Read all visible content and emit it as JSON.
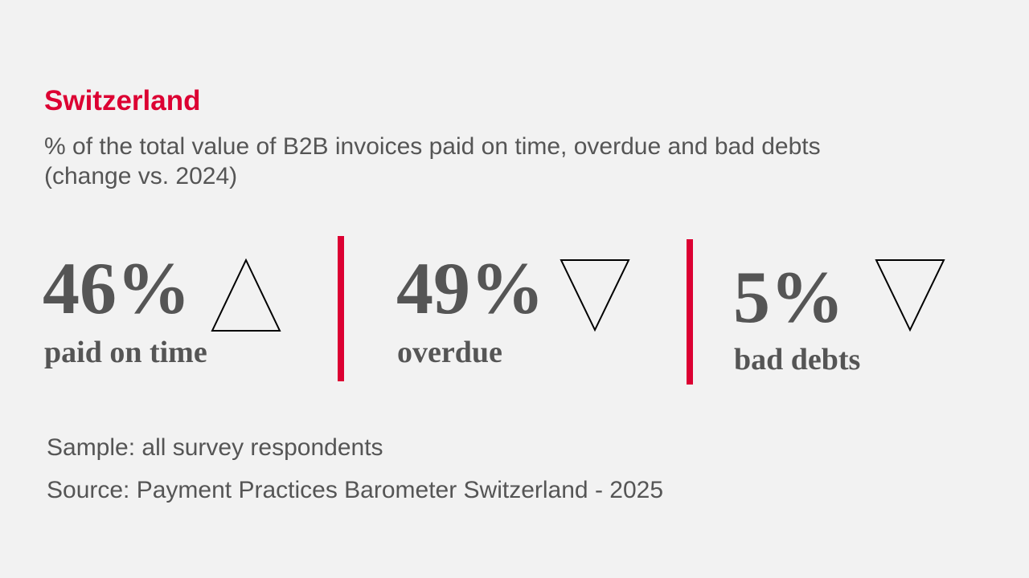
{
  "title": "Switzerland",
  "subtitle": [
    "% of the total value of B2B invoices paid on time, overdue and bad debts",
    "(change vs. 2024)"
  ],
  "colors": {
    "accent": "#dc0032",
    "text": "#555555",
    "background": "#f2f2f2"
  },
  "kpis": [
    {
      "value": "46%",
      "label": "paid on time",
      "change": "up",
      "icon": "triangle-up-icon"
    },
    {
      "value": "49%",
      "label": "overdue",
      "change": "down",
      "icon": "triangle-down-icon"
    },
    {
      "value": "5%",
      "label": "bad debts",
      "change": "down",
      "icon": "triangle-down-icon"
    }
  ],
  "footer": {
    "sample": "Sample: all survey respondents",
    "source": "Source: Payment Practices Barometer Switzerland - 2025"
  }
}
